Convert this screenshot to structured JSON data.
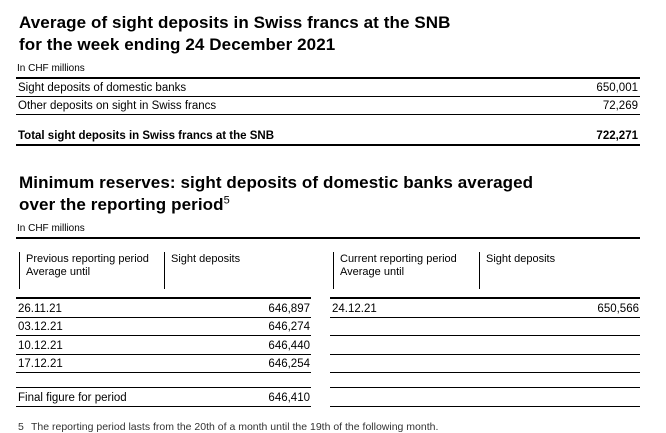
{
  "section1": {
    "title_line1": "Average of sight deposits in Swiss francs at the SNB",
    "title_line2": "for the week ending 24 December 2021",
    "unit_label": "In CHF millions",
    "rows": [
      {
        "label": "Sight deposits of domestic banks",
        "value": "650,001"
      },
      {
        "label": "Other deposits on sight in Swiss francs",
        "value": "72,269"
      }
    ],
    "total_row": {
      "label": "Total sight deposits in Swiss francs at the SNB",
      "value": "722,271"
    }
  },
  "section2": {
    "title_line1": "Minimum reserves: sight deposits of domestic banks averaged",
    "title_line2": "over the reporting period",
    "title_footnote_ref": "5",
    "unit_label": "In CHF millions",
    "previous_period_table": {
      "header": {
        "col1_line1": "Previous reporting period",
        "col1_line2": "Average until",
        "col2": "Sight deposits"
      },
      "rows": [
        {
          "date": "26.11.21",
          "value": "646,897"
        },
        {
          "date": "03.12.21",
          "value": "646,274"
        },
        {
          "date": "10.12.21",
          "value": "646,440"
        },
        {
          "date": "17.12.21",
          "value": "646,254"
        }
      ],
      "final_row": {
        "label": "Final figure for period",
        "value": "646,410"
      }
    },
    "current_period_table": {
      "header": {
        "col1_line1": "Current reporting period",
        "col1_line2": "Average until",
        "col2": "Sight deposits"
      },
      "rows": [
        {
          "date": "24.12.21",
          "value": "650,566"
        },
        {
          "date": "",
          "value": ""
        },
        {
          "date": "",
          "value": ""
        },
        {
          "date": "",
          "value": ""
        }
      ],
      "final_row": {
        "label": "",
        "value": ""
      }
    }
  },
  "footnote": {
    "number": "5",
    "text": "The reporting period lasts from the 20th of a month until the 19th of the following month."
  }
}
